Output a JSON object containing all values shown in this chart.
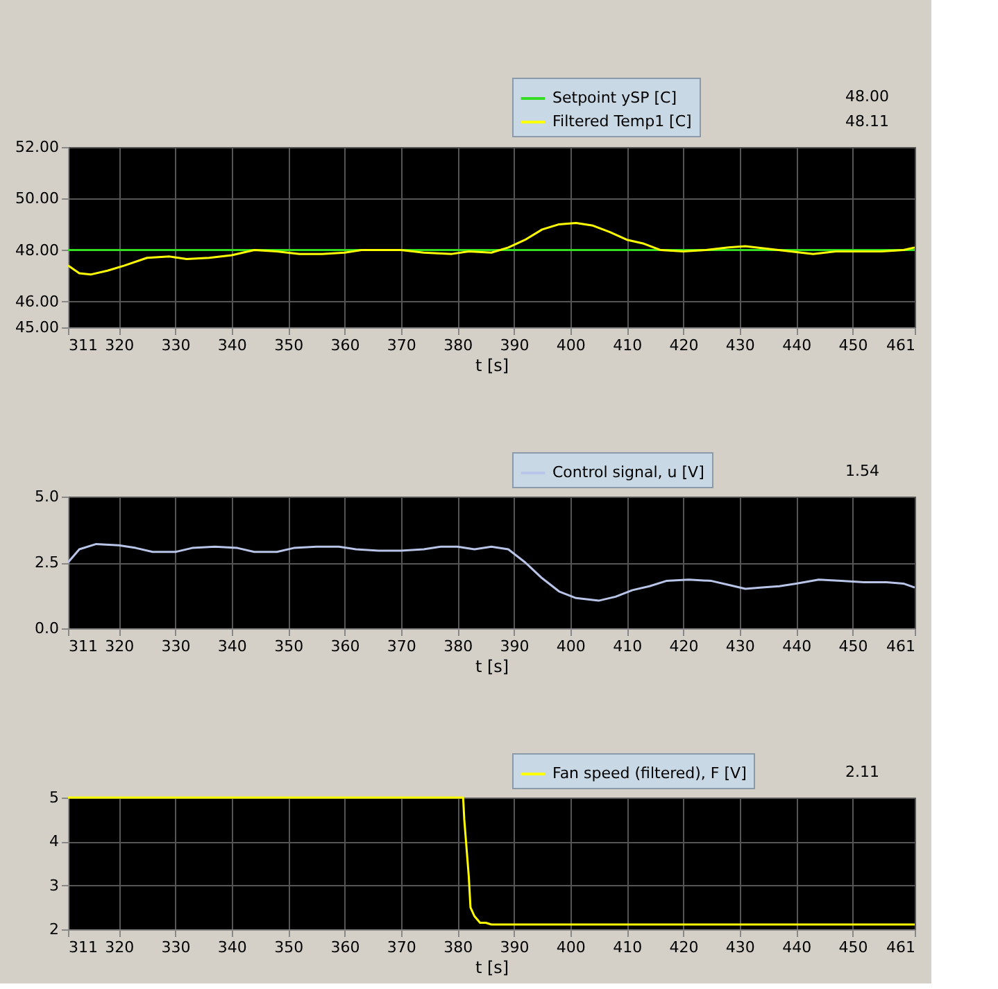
{
  "chart_data": [
    {
      "type": "line",
      "xlabel": "t [s]",
      "xlim": [
        311,
        461
      ],
      "xticks": [
        311,
        320,
        330,
        340,
        350,
        360,
        370,
        380,
        390,
        400,
        410,
        420,
        430,
        440,
        450,
        461
      ],
      "ylim": [
        45,
        52
      ],
      "yticks": [
        {
          "value": 45,
          "label": "45.00"
        },
        {
          "value": 46,
          "label": "46.00"
        },
        {
          "value": 48,
          "label": "48.00"
        },
        {
          "value": 50,
          "label": "50.00"
        },
        {
          "value": 52,
          "label": "52.00"
        }
      ],
      "grid": true,
      "legend": "top right",
      "line_style": "solid",
      "annotations": [
        "48.00",
        "48.11"
      ],
      "series": [
        {
          "name": "Setpoint ySP [C]",
          "color": "#33dd22",
          "x": [
            311,
            461
          ],
          "values": [
            48,
            48
          ]
        },
        {
          "name": "Filtered Temp1 [C]",
          "color": "#ffff00",
          "x": [
            311,
            313,
            315,
            318,
            321,
            325,
            329,
            332,
            336,
            340,
            344,
            348,
            352,
            356,
            360,
            363,
            370,
            374,
            379,
            382,
            386,
            389,
            392,
            395,
            398,
            401,
            404,
            407,
            410,
            413,
            416,
            420,
            424,
            428,
            431,
            435,
            439,
            443,
            447,
            451,
            455,
            459,
            461
          ],
          "values": [
            47.4,
            47.1,
            47.05,
            47.2,
            47.4,
            47.7,
            47.75,
            47.65,
            47.7,
            47.8,
            48.0,
            47.95,
            47.85,
            47.85,
            47.9,
            48.0,
            48.0,
            47.9,
            47.85,
            47.95,
            47.9,
            48.1,
            48.4,
            48.8,
            49.0,
            49.05,
            48.95,
            48.7,
            48.4,
            48.25,
            48.0,
            47.95,
            48.0,
            48.1,
            48.15,
            48.05,
            47.95,
            47.85,
            47.95,
            47.95,
            47.95,
            48.0,
            48.1
          ]
        }
      ]
    },
    {
      "type": "line",
      "xlabel": "t [s]",
      "xlim": [
        311,
        461
      ],
      "xticks": [
        311,
        320,
        330,
        340,
        350,
        360,
        370,
        380,
        390,
        400,
        410,
        420,
        430,
        440,
        450,
        461
      ],
      "ylim": [
        0,
        5
      ],
      "yticks": [
        {
          "value": 0,
          "label": "0.0"
        },
        {
          "value": 2.5,
          "label": "2.5"
        },
        {
          "value": 5,
          "label": "5.0"
        }
      ],
      "grid": true,
      "legend": "top right",
      "line_style": "solid",
      "annotations": [
        "1.54"
      ],
      "series": [
        {
          "name": "Control signal, u [V]",
          "color": "#b8c4e8",
          "x": [
            311,
            313,
            316,
            320,
            323,
            326,
            330,
            333,
            337,
            341,
            344,
            348,
            351,
            355,
            359,
            362,
            366,
            370,
            374,
            377,
            380,
            383,
            386,
            389,
            392,
            395,
            398,
            401,
            405,
            408,
            411,
            414,
            417,
            421,
            425,
            428,
            431,
            434,
            437,
            440,
            444,
            448,
            452,
            456,
            459,
            461
          ],
          "values": [
            2.5,
            3.0,
            3.2,
            3.15,
            3.05,
            2.9,
            2.9,
            3.05,
            3.1,
            3.05,
            2.9,
            2.9,
            3.05,
            3.1,
            3.1,
            3.0,
            2.95,
            2.95,
            3.0,
            3.1,
            3.1,
            3.0,
            3.1,
            3.0,
            2.5,
            1.9,
            1.4,
            1.15,
            1.05,
            1.2,
            1.45,
            1.6,
            1.8,
            1.85,
            1.8,
            1.65,
            1.5,
            1.55,
            1.6,
            1.7,
            1.85,
            1.8,
            1.75,
            1.75,
            1.7,
            1.55
          ]
        }
      ]
    },
    {
      "type": "line",
      "xlabel": "t [s]",
      "xlim": [
        311,
        461
      ],
      "xticks": [
        311,
        320,
        330,
        340,
        350,
        360,
        370,
        380,
        390,
        400,
        410,
        420,
        430,
        440,
        450,
        461
      ],
      "ylim": [
        2,
        5
      ],
      "yticks": [
        2,
        3,
        4,
        5
      ],
      "grid": true,
      "legend": "top right",
      "line_style": "solid",
      "annotations": [
        "2.11"
      ],
      "series": [
        {
          "name": "Fan speed (filtered), F [V]",
          "color": "#ffff00",
          "x": [
            311,
            381,
            381.2,
            382,
            382.3,
            383,
            384,
            385,
            386,
            461
          ],
          "values": [
            5,
            5,
            4.5,
            3.2,
            2.5,
            2.3,
            2.15,
            2.15,
            2.11,
            2.11
          ]
        }
      ]
    }
  ]
}
